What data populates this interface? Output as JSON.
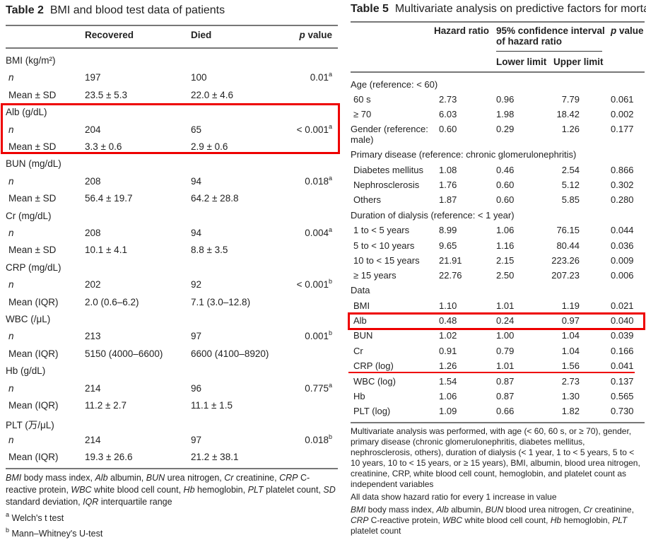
{
  "table2": {
    "label": "Table 2",
    "title": "BMI and blood test data of patients",
    "headers": {
      "recovered": "Recovered",
      "died": "Died",
      "p_italic": "p",
      "p": "value"
    },
    "rows": [
      {
        "label": "BMI (kg/m²)",
        "group": true
      },
      {
        "label": "n",
        "italic": true,
        "rec": "197",
        "died": "100",
        "p": "0.01",
        "sup": "a"
      },
      {
        "label": "Mean ± SD",
        "rec": "23.5 ± 5.3",
        "died": "22.0 ± 4.6"
      },
      {
        "label": "Alb (g/dL)",
        "group": true
      },
      {
        "label": "n",
        "italic": true,
        "rec": "204",
        "died": "65",
        "p": "< 0.001",
        "sup": "a"
      },
      {
        "label": "Mean ± SD",
        "rec": "3.3 ± 0.6",
        "died": "2.9 ± 0.6"
      },
      {
        "label": "BUN (mg/dL)",
        "group": true
      },
      {
        "label": "n",
        "italic": true,
        "rec": "208",
        "died": "94",
        "p": "0.018",
        "sup": "a"
      },
      {
        "label": "Mean ± SD",
        "rec": "56.4 ± 19.7",
        "died": "64.2 ± 28.8"
      },
      {
        "label": "Cr (mg/dL)",
        "group": true
      },
      {
        "label": "n",
        "italic": true,
        "rec": "208",
        "died": "94",
        "p": "0.004",
        "sup": "a"
      },
      {
        "label": "Mean ± SD",
        "rec": "10.1 ± 4.1",
        "died": "8.8 ± 3.5"
      },
      {
        "label": "CRP (mg/dL)",
        "group": true
      },
      {
        "label": "n",
        "italic": true,
        "rec": "202",
        "died": "92",
        "p": "< 0.001",
        "sup": "b"
      },
      {
        "label": "Mean (IQR)",
        "rec": "2.0 (0.6–6.2)",
        "died": "7.1 (3.0–12.8)"
      },
      {
        "label": "WBC (/μL)",
        "group": true
      },
      {
        "label": "n",
        "italic": true,
        "rec": "213",
        "died": "97",
        "p": "0.001",
        "sup": "b"
      },
      {
        "label": "Mean (IQR)",
        "rec": "5150 (4000–6600)",
        "died": "6600 (4100–8920)"
      },
      {
        "label": "Hb (g/dL)",
        "group": true
      },
      {
        "label": "n",
        "italic": true,
        "rec": "214",
        "died": "96",
        "p": "0.775",
        "sup": "a"
      },
      {
        "label": "Mean (IQR)",
        "rec": "11.2 ± 2.7",
        "died": "11.1 ± 1.5"
      },
      {
        "label": "PLT (万/μL)",
        "group": true
      },
      {
        "label": "n",
        "italic": true,
        "rec": "214",
        "died": "97",
        "p": "0.018",
        "sup": "b"
      },
      {
        "label": "Mean (IQR)",
        "rec": "19.3 ± 26.6",
        "died": "21.2 ± 38.1"
      }
    ],
    "footnote": "<i>BMI</i> body mass index, <i>Alb</i> albumin, <i>BUN</i> urea nitrogen, <i>Cr</i> creatinine, <i>CRP</i> C-reactive protein, <i>WBC</i> white blood cell count, <i>Hb</i> hemoglobin, <i>PLT</i> platelet count, <i>SD</i> standard deviation, <i>IQR</i> interquartile range",
    "note_a": "Welch's t test",
    "note_b": "Mann–Whitney's U-test"
  },
  "table5": {
    "label": "Table 5",
    "title": "Multivariate analysis on predictive factors for mortality",
    "headers": {
      "hr": "Hazard ratio",
      "ci": "95% confidence interval of hazard ratio",
      "lower": "Lower limit",
      "upper": "Upper limit",
      "p_italic": "p",
      "p": "value"
    },
    "rows": [
      {
        "label": "Age (reference: < 60)",
        "group": true
      },
      {
        "label": "60 s",
        "hr": "2.73",
        "lo": "0.96",
        "up": "7.79",
        "p": "0.061"
      },
      {
        "label": "≥ 70",
        "hr": "6.03",
        "lo": "1.98",
        "up": "18.42",
        "p": "0.002"
      },
      {
        "label": "Gender (reference:",
        "label2": "male)",
        "hr": "0.60",
        "lo": "0.29",
        "up": "1.26",
        "p": "0.177",
        "flush": true
      },
      {
        "label": "Primary disease (reference: chronic glomerulonephritis)",
        "group": true
      },
      {
        "label": "Diabetes mellitus",
        "hr": "1.08",
        "lo": "0.46",
        "up": "2.54",
        "p": "0.866"
      },
      {
        "label": "Nephrosclerosis",
        "hr": "1.76",
        "lo": "0.60",
        "up": "5.12",
        "p": "0.302"
      },
      {
        "label": "Others",
        "hr": "1.87",
        "lo": "0.60",
        "up": "5.85",
        "p": "0.280"
      },
      {
        "label": "Duration of dialysis (reference: < 1 year)",
        "group": true
      },
      {
        "label": "1 to < 5 years",
        "hr": "8.99",
        "lo": "1.06",
        "up": "76.15",
        "p": "0.044"
      },
      {
        "label": "5 to < 10 years",
        "hr": "9.65",
        "lo": "1.16",
        "up": "80.44",
        "p": "0.036"
      },
      {
        "label": "10 to < 15 years",
        "hr": "21.91",
        "lo": "2.15",
        "up": "223.26",
        "p": "0.009"
      },
      {
        "label": "≥ 15 years",
        "hr": "22.76",
        "lo": "2.50",
        "up": "207.23",
        "p": "0.006"
      },
      {
        "label": "Data",
        "group": true
      },
      {
        "label": "BMI",
        "hr": "1.10",
        "lo": "1.01",
        "up": "1.19",
        "p": "0.021"
      },
      {
        "label": "Alb",
        "hr": "0.48",
        "lo": "0.24",
        "up": "0.97",
        "p": "0.040"
      },
      {
        "label": "BUN",
        "hr": "1.02",
        "lo": "1.00",
        "up": "1.04",
        "p": "0.039"
      },
      {
        "label": "Cr",
        "hr": "0.91",
        "lo": "0.79",
        "up": "1.04",
        "p": "0.166"
      },
      {
        "label": "CRP (log)",
        "hr": "1.26",
        "lo": "1.01",
        "up": "1.56",
        "p": "0.041"
      },
      {
        "label": "WBC (log)",
        "hr": "1.54",
        "lo": "0.87",
        "up": "2.73",
        "p": "0.137"
      },
      {
        "label": "Hb",
        "hr": "1.06",
        "lo": "0.87",
        "up": "1.30",
        "p": "0.565"
      },
      {
        "label": "PLT (log)",
        "hr": "1.09",
        "lo": "0.66",
        "up": "1.82",
        "p": "0.730"
      }
    ],
    "note1": "Multivariate analysis was performed, with age (< 60, 60 s, or ≥ 70), gender, primary disease (chronic glomerulonephritis, diabetes mellitus, nephrosclerosis, others), duration of dialysis (< 1 year, 1 to < 5 years, 5 to < 10 years, 10 to < 15 years, or ≥ 15 years), BMI, albumin, blood urea nitrogen, creatinine, CRP, white blood cell count, hemoglobin, and platelet count as independent variables",
    "note2": "All data show hazard ratio for every 1 increase in value",
    "note3": "<i>BMI</i> body mass index, <i>Alb</i> albumin, <i>BUN</i> blood urea nitrogen, <i>Cr</i> creatinine, <i>CRP</i> C-reactive protein, <i>WBC</i> white blood cell count, <i>Hb</i> hemoglobin, <i>PLT</i> platelet count"
  },
  "highlight_color": "#e00000"
}
